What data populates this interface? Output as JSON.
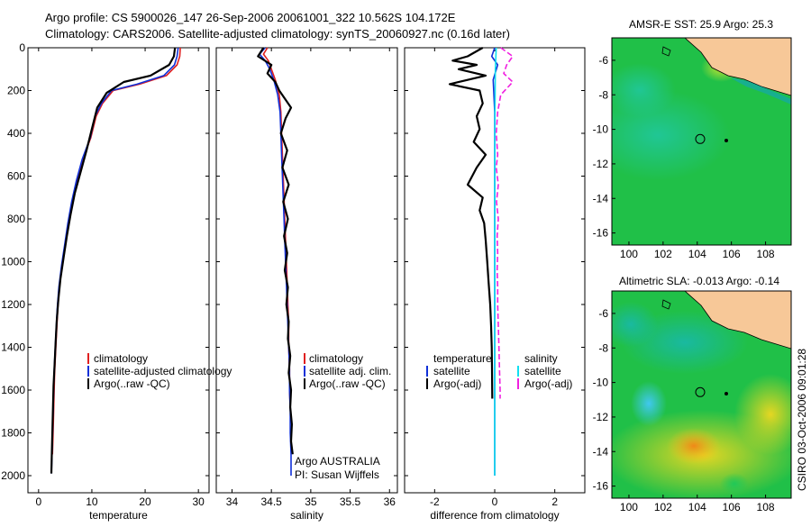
{
  "header": {
    "line1": "Argo profile: CS 5900026_147 26-Sep-2006 20061001_322 10.562S 104.172E",
    "line2": "Climatology: CARS2006. Satellite-adjusted climatology: synTS_20060927.nc (0.16d later)"
  },
  "side_stamp": "CSIRO 03-Oct-2006 09:01:28",
  "colors": {
    "climatology": "#e02020",
    "satellite": "#1030d8",
    "argo": "#000000",
    "salinity_satellite": "#10e0f0",
    "salinity_argo": "#f020e0",
    "land": "#f7c898"
  },
  "chart_data": [
    {
      "type": "line",
      "xlabel": "temperature",
      "xlim": [
        -2,
        32
      ],
      "ylim": [
        0,
        2080
      ],
      "x_ticks": [
        0,
        10,
        20,
        30
      ],
      "y_ticks": [
        0,
        200,
        400,
        600,
        800,
        1000,
        1200,
        1400,
        1600,
        1800,
        2000
      ],
      "series": [
        {
          "name": "climatology",
          "color": "#e02020",
          "points": [
            [
              26.6,
              0
            ],
            [
              26.5,
              40
            ],
            [
              26.0,
              80
            ],
            [
              24.0,
              130
            ],
            [
              19.0,
              170
            ],
            [
              14.0,
              200
            ],
            [
              12.0,
              260
            ],
            [
              10.8,
              320
            ],
            [
              9.8,
              420
            ],
            [
              8.3,
              520
            ],
            [
              7.2,
              620
            ],
            [
              6.3,
              720
            ],
            [
              5.6,
              820
            ],
            [
              5.0,
              920
            ],
            [
              4.4,
              1020
            ],
            [
              3.9,
              1120
            ],
            [
              3.6,
              1220
            ],
            [
              3.4,
              1320
            ],
            [
              3.2,
              1420
            ],
            [
              3.0,
              1520
            ],
            [
              2.9,
              1620
            ],
            [
              2.8,
              1720
            ],
            [
              2.7,
              1820
            ],
            [
              2.6,
              1900
            ]
          ]
        },
        {
          "name": "satellite-adjusted climatology",
          "color": "#1030d8",
          "points": [
            [
              26.2,
              0
            ],
            [
              26.0,
              40
            ],
            [
              25.5,
              80
            ],
            [
              23.5,
              130
            ],
            [
              18.5,
              170
            ],
            [
              13.7,
              200
            ],
            [
              11.8,
              260
            ],
            [
              10.6,
              320
            ],
            [
              9.7,
              420
            ],
            [
              8.2,
              520
            ],
            [
              7.1,
              620
            ],
            [
              6.2,
              720
            ],
            [
              5.5,
              820
            ],
            [
              4.9,
              920
            ],
            [
              4.3,
              1020
            ],
            [
              3.8,
              1120
            ],
            [
              3.5,
              1220
            ],
            [
              3.3,
              1320
            ],
            [
              3.1,
              1420
            ],
            [
              2.9,
              1520
            ],
            [
              2.8,
              1620
            ],
            [
              2.7,
              1720
            ],
            [
              2.6,
              1820
            ],
            [
              2.5,
              1920
            ],
            [
              2.4,
              1990
            ]
          ]
        },
        {
          "name": "Argo(..raw -QC)",
          "color": "#000000",
          "points": [
            [
              25.6,
              0
            ],
            [
              25.4,
              40
            ],
            [
              24.5,
              80
            ],
            [
              21.0,
              130
            ],
            [
              16.0,
              160
            ],
            [
              12.8,
              210
            ],
            [
              11.0,
              280
            ],
            [
              10.0,
              380
            ],
            [
              9.0,
              480
            ],
            [
              7.9,
              580
            ],
            [
              6.8,
              680
            ],
            [
              6.0,
              780
            ],
            [
              5.3,
              880
            ],
            [
              4.7,
              980
            ],
            [
              4.1,
              1080
            ],
            [
              3.7,
              1180
            ],
            [
              3.4,
              1280
            ],
            [
              3.2,
              1380
            ],
            [
              3.0,
              1480
            ],
            [
              2.8,
              1580
            ],
            [
              2.7,
              1680
            ],
            [
              2.6,
              1780
            ],
            [
              2.5,
              1880
            ],
            [
              2.4,
              1990
            ]
          ]
        }
      ],
      "legend": {
        "placement": "lower-right",
        "entries": [
          "climatology",
          "satellite-adjusted climatology",
          "Argo(..raw -QC)"
        ]
      }
    },
    {
      "type": "line",
      "xlabel": "salinity",
      "xlim": [
        33.8,
        36.1
      ],
      "ylim": [
        0,
        2080
      ],
      "x_ticks": [
        34,
        34.5,
        35,
        35.5,
        36
      ],
      "y_ticks": [
        0,
        200,
        400,
        600,
        800,
        1000,
        1200,
        1400,
        1600,
        1800,
        2000
      ],
      "series": [
        {
          "name": "climatology",
          "color": "#e02020",
          "points": [
            [
              34.45,
              0
            ],
            [
              34.4,
              30
            ],
            [
              34.46,
              60
            ],
            [
              34.5,
              100
            ],
            [
              34.55,
              150
            ],
            [
              34.6,
              220
            ],
            [
              34.62,
              300
            ],
            [
              34.63,
              400
            ],
            [
              34.64,
              500
            ],
            [
              34.65,
              600
            ],
            [
              34.66,
              700
            ],
            [
              34.67,
              800
            ],
            [
              34.68,
              900
            ],
            [
              34.69,
              1000
            ],
            [
              34.7,
              1100
            ],
            [
              34.71,
              1200
            ],
            [
              34.72,
              1300
            ],
            [
              34.72,
              1400
            ],
            [
              34.73,
              1500
            ],
            [
              34.73,
              1600
            ],
            [
              34.74,
              1680
            ]
          ]
        },
        {
          "name": "satellite adj. clim.",
          "color": "#1030d8",
          "points": [
            [
              34.42,
              0
            ],
            [
              34.35,
              30
            ],
            [
              34.42,
              60
            ],
            [
              34.48,
              100
            ],
            [
              34.53,
              150
            ],
            [
              34.58,
              220
            ],
            [
              34.61,
              300
            ],
            [
              34.62,
              400
            ],
            [
              34.63,
              500
            ],
            [
              34.64,
              600
            ],
            [
              34.65,
              700
            ],
            [
              34.66,
              800
            ],
            [
              34.67,
              900
            ],
            [
              34.68,
              1000
            ],
            [
              34.69,
              1100
            ],
            [
              34.7,
              1200
            ],
            [
              34.71,
              1300
            ],
            [
              34.72,
              1400
            ],
            [
              34.73,
              1500
            ],
            [
              34.73,
              1600
            ],
            [
              34.74,
              1700
            ],
            [
              34.74,
              1800
            ],
            [
              34.75,
              1900
            ],
            [
              34.75,
              2000
            ]
          ]
        },
        {
          "name": "Argo(..raw -QC)",
          "color": "#000000",
          "points": [
            [
              34.4,
              0
            ],
            [
              34.33,
              40
            ],
            [
              34.5,
              80
            ],
            [
              34.45,
              120
            ],
            [
              34.55,
              160
            ],
            [
              34.6,
              200
            ],
            [
              34.75,
              280
            ],
            [
              34.68,
              330
            ],
            [
              34.62,
              400
            ],
            [
              34.7,
              480
            ],
            [
              34.64,
              560
            ],
            [
              34.72,
              640
            ],
            [
              34.65,
              720
            ],
            [
              34.71,
              800
            ],
            [
              34.66,
              880
            ],
            [
              34.7,
              960
            ],
            [
              34.67,
              1040
            ],
            [
              34.71,
              1120
            ],
            [
              34.69,
              1200
            ],
            [
              34.72,
              1280
            ],
            [
              34.71,
              1360
            ],
            [
              34.74,
              1440
            ],
            [
              34.72,
              1520
            ],
            [
              34.75,
              1600
            ],
            [
              34.74,
              1680
            ],
            [
              34.76,
              1760
            ],
            [
              34.75,
              1840
            ],
            [
              34.77,
              1900
            ]
          ]
        }
      ],
      "legend": {
        "placement": "lower-right",
        "entries": [
          "climatology",
          "satellite adj. clim.",
          "Argo(..raw -QC)"
        ]
      },
      "annotation": [
        "Argo AUSTRALIA",
        "PI: Susan Wijffels"
      ]
    },
    {
      "type": "line",
      "xlabel": "difference from climatology",
      "xlim": [
        -3,
        3
      ],
      "ylim": [
        0,
        2080
      ],
      "x_ticks": [
        -2,
        0,
        2
      ],
      "y_ticks": [
        0,
        200,
        400,
        600,
        800,
        1000,
        1200,
        1400,
        1600,
        1800,
        2000
      ],
      "series": [
        {
          "name": "temperature satellite",
          "color": "#1030d8",
          "points": [
            [
              0,
              0
            ],
            [
              -0.1,
              40
            ],
            [
              0.1,
              80
            ],
            [
              -0.05,
              150
            ],
            [
              0,
              300
            ],
            [
              0,
              600
            ],
            [
              0,
              1000
            ],
            [
              0,
              1500
            ],
            [
              0,
              2000
            ]
          ]
        },
        {
          "name": "temperature Argo(-adj)",
          "color": "#000000",
          "points": [
            [
              -0.4,
              0
            ],
            [
              -0.9,
              40
            ],
            [
              -1.4,
              60
            ],
            [
              -0.6,
              80
            ],
            [
              -1.2,
              100
            ],
            [
              -0.3,
              130
            ],
            [
              -1.5,
              170
            ],
            [
              -0.5,
              200
            ],
            [
              -0.4,
              260
            ],
            [
              -0.6,
              320
            ],
            [
              -0.5,
              380
            ],
            [
              -0.7,
              440
            ],
            [
              -0.3,
              500
            ],
            [
              -0.6,
              560
            ],
            [
              -0.9,
              640
            ],
            [
              -0.4,
              700
            ],
            [
              -0.5,
              760
            ],
            [
              -0.35,
              820
            ],
            [
              -0.3,
              900
            ],
            [
              -0.25,
              1000
            ],
            [
              -0.2,
              1100
            ],
            [
              -0.15,
              1200
            ],
            [
              -0.12,
              1300
            ],
            [
              -0.1,
              1400
            ],
            [
              -0.09,
              1500
            ],
            [
              -0.08,
              1640
            ]
          ]
        },
        {
          "name": "salinity satellite",
          "color": "#10e0f0",
          "points": [
            [
              0.05,
              0
            ],
            [
              0.02,
              100
            ],
            [
              0.01,
              300
            ],
            [
              0,
              600
            ],
            [
              0,
              1000
            ],
            [
              0,
              1500
            ],
            [
              0,
              2000
            ]
          ]
        },
        {
          "name": "salinity Argo(-adj)",
          "color": "#f020e0",
          "points": [
            [
              0.2,
              0
            ],
            [
              0.6,
              40
            ],
            [
              0.4,
              80
            ],
            [
              0.3,
              120
            ],
            [
              0.6,
              160
            ],
            [
              0.2,
              220
            ],
            [
              0.1,
              300
            ],
            [
              0.05,
              400
            ],
            [
              0.1,
              500
            ],
            [
              0.05,
              560
            ],
            [
              0.12,
              640
            ],
            [
              0.06,
              720
            ],
            [
              0.12,
              800
            ],
            [
              0.08,
              880
            ],
            [
              0.1,
              960
            ],
            [
              0.08,
              1040
            ],
            [
              0.1,
              1120
            ],
            [
              0.1,
              1200
            ],
            [
              0.12,
              1300
            ],
            [
              0.14,
              1400
            ],
            [
              0.16,
              1500
            ],
            [
              0.18,
              1600
            ],
            [
              0.18,
              1640
            ]
          ]
        }
      ],
      "legend": {
        "placement": "lower",
        "headers": [
          "temperature",
          "salinity"
        ],
        "entries": [
          "satellite",
          "Argo(-adj)",
          "satellite",
          "Argo(-adj)"
        ]
      }
    },
    {
      "type": "heatmap",
      "title": "AMSR-E SST: 25.9 Argo: 25.3",
      "x_ticks": [
        100,
        102,
        104,
        106,
        108
      ],
      "y_ticks": [
        -6,
        -8,
        -10,
        -12,
        -14,
        -16
      ],
      "xlim": [
        99.0,
        109.5
      ],
      "ylim": [
        -16.7,
        -4.7
      ],
      "argo_position": [
        104.17,
        -10.56
      ]
    },
    {
      "type": "heatmap",
      "title": "Altimetric SLA: -0.013 Argo: -0.14",
      "x_ticks": [
        100,
        102,
        104,
        106,
        108
      ],
      "y_ticks": [
        -6,
        -8,
        -10,
        -12,
        -14,
        -16
      ],
      "xlim": [
        99.0,
        109.5
      ],
      "ylim": [
        -16.7,
        -4.7
      ],
      "argo_position": [
        104.17,
        -10.56
      ]
    }
  ]
}
